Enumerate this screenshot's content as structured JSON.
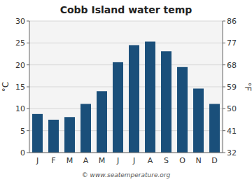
{
  "chart_data": {
    "type": "bar",
    "title": "Cobb Island water temp",
    "categories": [
      "J",
      "F",
      "M",
      "A",
      "M",
      "J",
      "J",
      "A",
      "S",
      "O",
      "N",
      "D"
    ],
    "values": [
      8.8,
      7.5,
      8.1,
      11.1,
      14.0,
      20.6,
      24.5,
      25.3,
      23.1,
      19.5,
      14.6,
      11.1
    ],
    "color": "#1a4f7a",
    "ylim": [
      0,
      30
    ],
    "yticks": [
      0,
      5,
      10,
      15,
      20,
      25,
      30
    ],
    "y2lim": [
      32,
      86
    ],
    "y2ticks": [
      32,
      41,
      50,
      59,
      68,
      77,
      86
    ],
    "ylabel": "°C",
    "y2label": "°F",
    "annotations": [
      "© www.seatemperature.org"
    ],
    "grid": true
  }
}
